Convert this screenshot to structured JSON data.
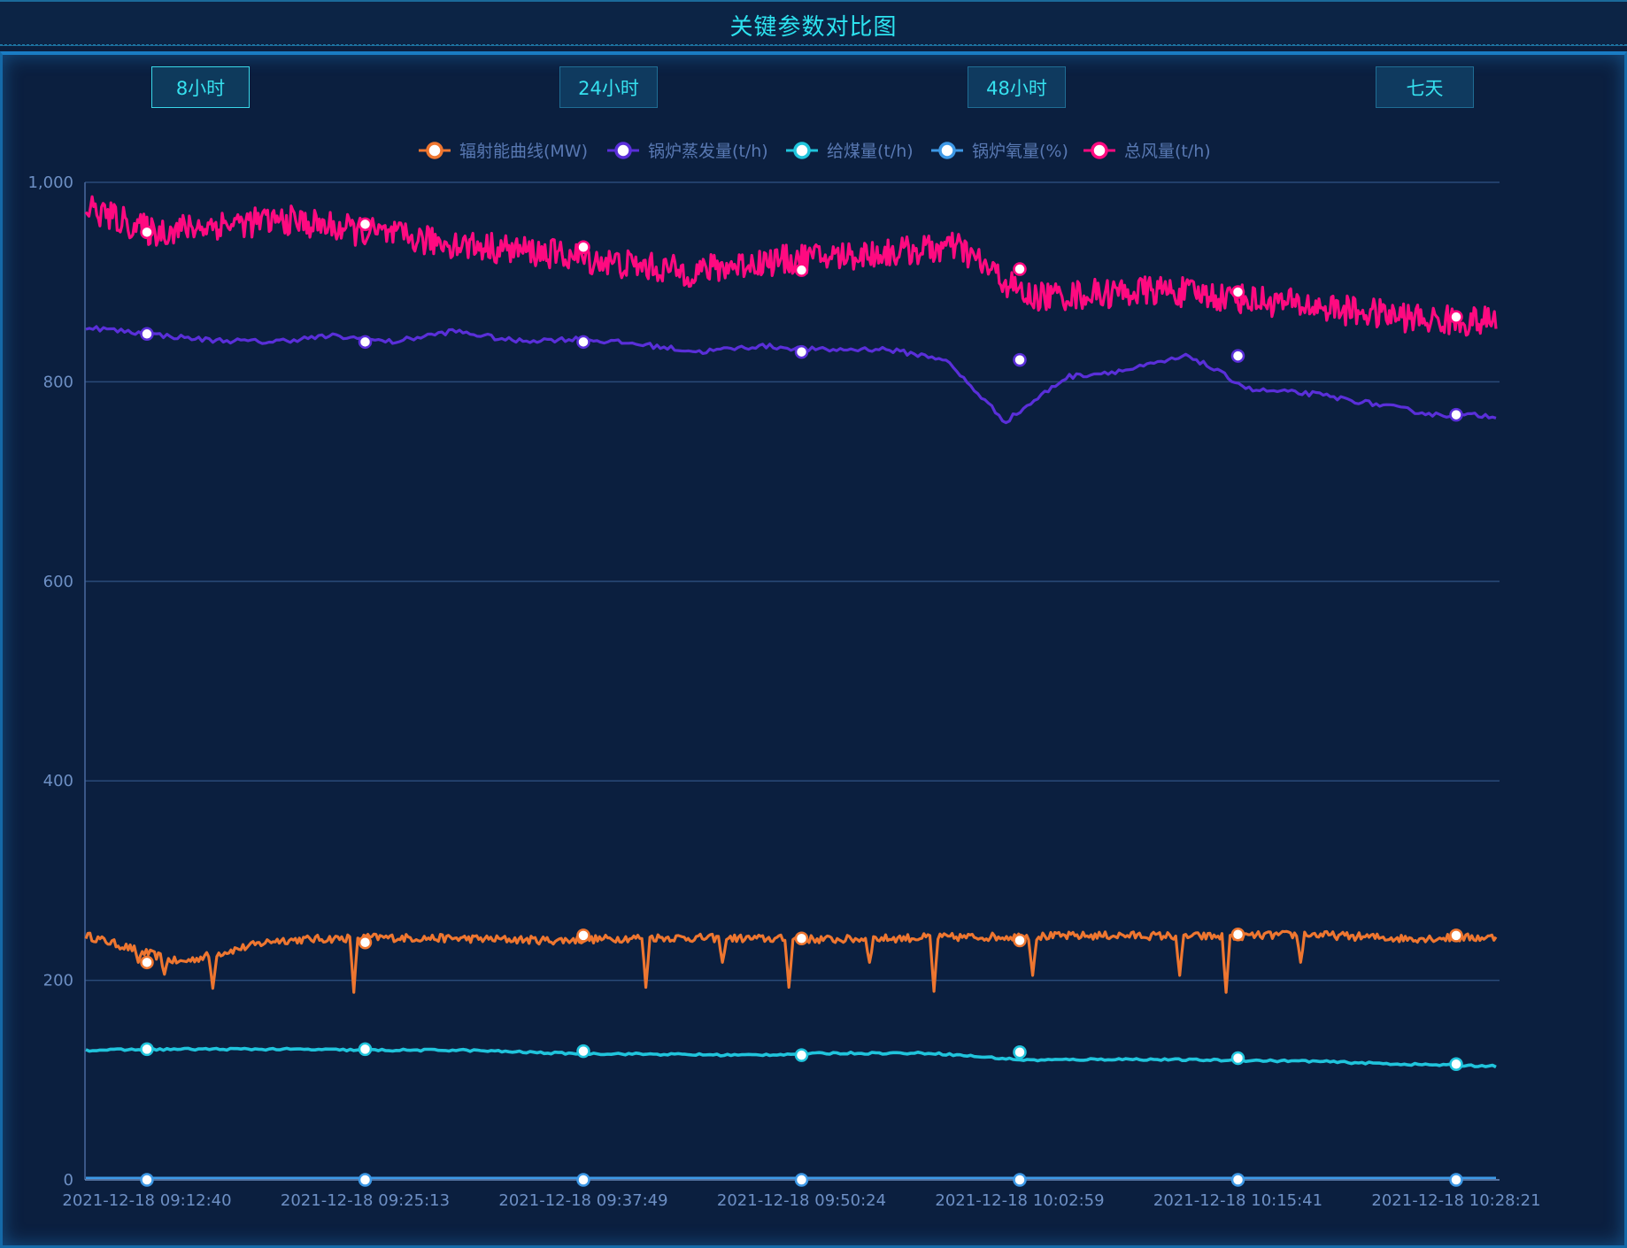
{
  "header": {
    "title": "关键参数对比图"
  },
  "range_buttons": [
    {
      "label": "8小时",
      "active": true
    },
    {
      "label": "24小时",
      "active": false
    },
    {
      "label": "48小时",
      "active": false
    },
    {
      "label": "七天",
      "active": false
    }
  ],
  "chart_data": {
    "type": "line",
    "title": "",
    "xlabel": "",
    "ylabel": "",
    "ylim": [
      0,
      1000
    ],
    "y_ticks": [
      "0",
      "200",
      "400",
      "600",
      "800",
      "1,000"
    ],
    "x_ticks": [
      "2021-12-18 09:12:40",
      "2021-12-18 09:25:13",
      "2021-12-18 09:37:49",
      "2021-12-18 09:50:24",
      "2021-12-18 10:02:59",
      "2021-12-18 10:15:41",
      "2021-12-18 10:28:21"
    ],
    "grid": true,
    "legend_position": "top-center",
    "series": [
      {
        "name": "辐射能曲线(MW)",
        "color": "#ee7630",
        "values": [
          245,
          218,
          240,
          243,
          242,
          240,
          243,
          242,
          241,
          243,
          244,
          245,
          244,
          246,
          242,
          243
        ]
      },
      {
        "name": "锅炉蒸发量(t/h)",
        "color": "#5a2fd9",
        "values": [
          855,
          848,
          842,
          840,
          846,
          840,
          851,
          841,
          843,
          838,
          830,
          836,
          832,
          833,
          823,
          760,
          805,
          812,
          826,
          792,
          788,
          778,
          767,
          766
        ]
      },
      {
        "name": "给煤量(t/h)",
        "color": "#20c4dc",
        "values": [
          130,
          131,
          131,
          130,
          130,
          127,
          126,
          125,
          127,
          127,
          120,
          121,
          120,
          119,
          116,
          114
        ]
      },
      {
        "name": "锅炉氧量(%)",
        "color": "#3d98e6",
        "values": [
          2,
          2,
          2,
          2,
          2,
          2,
          2,
          2
        ]
      },
      {
        "name": "总风量(t/h)",
        "color": "#ff0a80",
        "values": [
          975,
          950,
          958,
          962,
          952,
          942,
          935,
          928,
          918,
          910,
          920,
          925,
          930,
          935,
          885,
          888,
          892,
          885,
          878,
          870,
          862,
          860
        ]
      }
    ],
    "marker_values": {
      "辐射能曲线(MW)": [
        218,
        238,
        245,
        242,
        240,
        246,
        245
      ],
      "锅炉蒸发量(t/h)": [
        848,
        840,
        840,
        830,
        822,
        826,
        767
      ],
      "给煤量(t/h)": [
        131,
        131,
        129,
        125,
        128,
        122,
        116
      ],
      "锅炉氧量(%)": [
        0,
        0,
        0,
        0,
        0,
        0,
        0
      ],
      "总风量(t/h)": [
        950,
        958,
        935,
        912,
        913,
        890,
        865
      ]
    }
  }
}
